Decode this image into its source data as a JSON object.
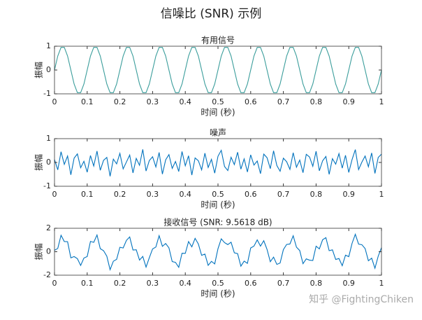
{
  "title": "信噪比 (SNR) 示例",
  "watermark": "知乎 @FightingChiken",
  "chart_data": [
    {
      "type": "line",
      "title": "有用信号",
      "xlabel": "时间 (秒)",
      "ylabel": "振幅",
      "color": "#3a9d9b",
      "xlim": [
        0,
        1
      ],
      "xticks": [
        0,
        0.1,
        0.2,
        0.3,
        0.4,
        0.5,
        0.6,
        0.7,
        0.8,
        0.9,
        1
      ],
      "ylim": [
        -1,
        1
      ],
      "yticks": [
        -1,
        0,
        1
      ],
      "x": [
        0,
        0.01,
        0.02,
        0.03,
        0.04,
        0.05,
        0.06,
        0.07,
        0.08,
        0.09,
        0.1,
        0.11,
        0.12,
        0.13,
        0.14,
        0.15,
        0.16,
        0.17,
        0.18,
        0.19,
        0.2,
        0.21,
        0.22,
        0.23,
        0.24,
        0.25,
        0.26,
        0.27,
        0.28,
        0.29,
        0.3,
        0.31,
        0.32,
        0.33,
        0.34,
        0.35,
        0.36,
        0.37,
        0.38,
        0.39,
        0.4,
        0.41,
        0.42,
        0.43,
        0.44,
        0.45,
        0.46,
        0.47,
        0.48,
        0.49,
        0.5,
        0.51,
        0.52,
        0.53,
        0.54,
        0.55,
        0.56,
        0.57,
        0.58,
        0.59,
        0.6,
        0.61,
        0.62,
        0.63,
        0.64,
        0.65,
        0.66,
        0.67,
        0.68,
        0.69,
        0.7,
        0.71,
        0.72,
        0.73,
        0.74,
        0.75,
        0.76,
        0.77,
        0.78,
        0.79,
        0.8,
        0.81,
        0.82,
        0.83,
        0.84,
        0.85,
        0.86,
        0.87,
        0.88,
        0.89,
        0.9,
        0.91,
        0.92,
        0.93,
        0.94,
        0.95,
        0.96,
        0.97,
        0.98,
        0.99,
        1
      ],
      "values": [
        0,
        0.588,
        0.951,
        0.951,
        0.588,
        0,
        -0.588,
        -0.951,
        -0.951,
        -0.588,
        0,
        0.588,
        0.951,
        0.951,
        0.588,
        0,
        -0.588,
        -0.951,
        -0.951,
        -0.588,
        0,
        0.588,
        0.951,
        0.951,
        0.588,
        0,
        -0.588,
        -0.951,
        -0.951,
        -0.588,
        0,
        0.588,
        0.951,
        0.951,
        0.588,
        0,
        -0.588,
        -0.951,
        -0.951,
        -0.588,
        0,
        0.588,
        0.951,
        0.951,
        0.588,
        0,
        -0.588,
        -0.951,
        -0.951,
        -0.588,
        0,
        0.588,
        0.951,
        0.951,
        0.588,
        0,
        -0.588,
        -0.951,
        -0.951,
        -0.588,
        0,
        0.588,
        0.951,
        0.951,
        0.588,
        0,
        -0.588,
        -0.951,
        -0.951,
        -0.588,
        0,
        0.588,
        0.951,
        0.951,
        0.588,
        0,
        -0.588,
        -0.951,
        -0.951,
        -0.588,
        0,
        0.588,
        0.951,
        0.951,
        0.588,
        0,
        -0.588,
        -0.951,
        -0.951,
        -0.588,
        0,
        0.588,
        0.951,
        0.951,
        0.588,
        0,
        -0.588,
        -0.951,
        -0.951,
        -0.588,
        0
      ]
    },
    {
      "type": "line",
      "title": "噪声",
      "xlabel": "时间 (秒)",
      "ylabel": "振幅",
      "color": "#0072bd",
      "xlim": [
        0,
        1
      ],
      "xticks": [
        0,
        0.1,
        0.2,
        0.3,
        0.4,
        0.5,
        0.6,
        0.7,
        0.8,
        0.9,
        1
      ],
      "ylim": [
        -1,
        1
      ],
      "yticks": [
        -1,
        0,
        1
      ],
      "x": [
        0,
        0.01,
        0.02,
        0.03,
        0.04,
        0.05,
        0.06,
        0.07,
        0.08,
        0.09,
        0.1,
        0.11,
        0.12,
        0.13,
        0.14,
        0.15,
        0.16,
        0.17,
        0.18,
        0.19,
        0.2,
        0.21,
        0.22,
        0.23,
        0.24,
        0.25,
        0.26,
        0.27,
        0.28,
        0.29,
        0.3,
        0.31,
        0.32,
        0.33,
        0.34,
        0.35,
        0.36,
        0.37,
        0.38,
        0.39,
        0.4,
        0.41,
        0.42,
        0.43,
        0.44,
        0.45,
        0.46,
        0.47,
        0.48,
        0.49,
        0.5,
        0.51,
        0.52,
        0.53,
        0.54,
        0.55,
        0.56,
        0.57,
        0.58,
        0.59,
        0.6,
        0.61,
        0.62,
        0.63,
        0.64,
        0.65,
        0.66,
        0.67,
        0.68,
        0.69,
        0.7,
        0.71,
        0.72,
        0.73,
        0.74,
        0.75,
        0.76,
        0.77,
        0.78,
        0.79,
        0.8,
        0.81,
        0.82,
        0.83,
        0.84,
        0.85,
        0.86,
        0.87,
        0.88,
        0.89,
        0.9,
        0.91,
        0.92,
        0.93,
        0.94,
        0.95,
        0.96,
        0.97,
        0.98,
        0.99,
        1
      ],
      "values": [
        0.12,
        -0.31,
        0.45,
        -0.08,
        0.27,
        -0.52,
        0.18,
        0.36,
        -0.22,
        0.05,
        -0.41,
        0.29,
        -0.15,
        0.48,
        -0.33,
        0.09,
        0.21,
        -0.58,
        0.14,
        -0.06,
        0.38,
        -0.27,
        0.02,
        0.31,
        -0.44,
        0.17,
        -0.12,
        0.55,
        -0.36,
        0.08,
        0.24,
        -0.19,
        0.42,
        -0.49,
        0.11,
        0.33,
        -0.25,
        0.04,
        -0.38,
        0.46,
        -0.14,
        0.28,
        -0.53,
        0.19,
        0.07,
        -0.31,
        0.39,
        -0.21,
        0.13,
        -0.45,
        0.26,
        0.51,
        -0.17,
        -0.34,
        0.22,
        -0.09,
        0.43,
        -0.28,
        0.15,
        -0.4,
        0.32,
        -0.11,
        0.06,
        -0.47,
        0.35,
        0.2,
        -0.26,
        0.49,
        -0.13,
        -0.37,
        0.18,
        0.03,
        -0.29,
        0.41,
        -0.2,
        0.1,
        -0.43,
        0.34,
        0.23,
        -0.16,
        0.47,
        -0.35,
        0.07,
        0.25,
        -0.5,
        0.16,
        -0.07,
        0.37,
        -0.24,
        0.3,
        -0.42,
        0.12,
        0.54,
        -0.3,
        0.01,
        0.27,
        -0.18,
        0.4,
        -0.46,
        0.21,
        0.35
      ]
    },
    {
      "type": "line",
      "title": "接收信号 (SNR: 9.5618 dB)",
      "xlabel": "时间 (秒)",
      "ylabel": "振幅",
      "color": "#0072bd",
      "xlim": [
        0,
        1
      ],
      "xticks": [
        0,
        0.1,
        0.2,
        0.3,
        0.4,
        0.5,
        0.6,
        0.7,
        0.8,
        0.9,
        1
      ],
      "ylim": [
        -2,
        2
      ],
      "yticks": [
        -2,
        0,
        2
      ],
      "x": [
        0,
        0.01,
        0.02,
        0.03,
        0.04,
        0.05,
        0.06,
        0.07,
        0.08,
        0.09,
        0.1,
        0.11,
        0.12,
        0.13,
        0.14,
        0.15,
        0.16,
        0.17,
        0.18,
        0.19,
        0.2,
        0.21,
        0.22,
        0.23,
        0.24,
        0.25,
        0.26,
        0.27,
        0.28,
        0.29,
        0.3,
        0.31,
        0.32,
        0.33,
        0.34,
        0.35,
        0.36,
        0.37,
        0.38,
        0.39,
        0.4,
        0.41,
        0.42,
        0.43,
        0.44,
        0.45,
        0.46,
        0.47,
        0.48,
        0.49,
        0.5,
        0.51,
        0.52,
        0.53,
        0.54,
        0.55,
        0.56,
        0.57,
        0.58,
        0.59,
        0.6,
        0.61,
        0.62,
        0.63,
        0.64,
        0.65,
        0.66,
        0.67,
        0.68,
        0.69,
        0.7,
        0.71,
        0.72,
        0.73,
        0.74,
        0.75,
        0.76,
        0.77,
        0.78,
        0.79,
        0.8,
        0.81,
        0.82,
        0.83,
        0.84,
        0.85,
        0.86,
        0.87,
        0.88,
        0.89,
        0.9,
        0.91,
        0.92,
        0.93,
        0.94,
        0.95,
        0.96,
        0.97,
        0.98,
        0.99,
        1
      ],
      "values": [
        0.12,
        0.28,
        1.4,
        0.87,
        0.86,
        -0.52,
        -0.41,
        -0.59,
        -1.17,
        -0.54,
        -0.41,
        0.88,
        0.8,
        1.43,
        0.26,
        0.09,
        -0.38,
        -1.53,
        -0.81,
        -0.65,
        0.38,
        0.32,
        0.97,
        1.26,
        0.15,
        0.17,
        -0.71,
        -0.4,
        -1.31,
        -0.51,
        0.24,
        0.4,
        1.37,
        0.46,
        0.7,
        0.33,
        -0.84,
        -0.91,
        -1.33,
        -0.13,
        -0.14,
        0.87,
        0.42,
        1.14,
        0.66,
        -0.31,
        -0.2,
        -1.16,
        -0.82,
        -1.04,
        0.26,
        1.1,
        0.78,
        0.61,
        0.81,
        -0.09,
        -0.16,
        -1.23,
        -0.8,
        -0.99,
        0.32,
        0.48,
        1.01,
        0.48,
        0.94,
        0.2,
        -0.85,
        -0.46,
        -1.08,
        -0.96,
        0.18,
        0.62,
        0.66,
        1.36,
        0.39,
        0.1,
        -1.02,
        -0.61,
        -0.72,
        -0.75,
        0.47,
        0.24,
        1.02,
        1.2,
        0.09,
        0.16,
        -0.66,
        -0.58,
        -1.19,
        -0.29,
        -0.42,
        0.71,
        1.49,
        0.65,
        0.6,
        0.27,
        -0.77,
        -0.55,
        -1.41,
        -0.38,
        0.35
      ]
    }
  ]
}
